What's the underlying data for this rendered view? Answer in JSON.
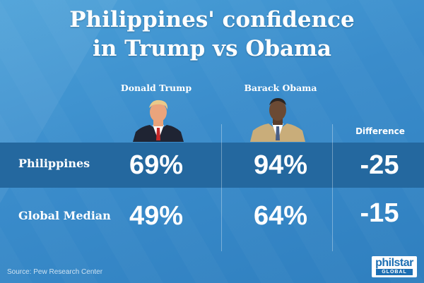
{
  "chart_data": {
    "type": "table",
    "title": "Philippines' confidence in Trump vs Obama",
    "title_lines": [
      "Philippines' confidence",
      "in Trump vs Obama"
    ],
    "columns": [
      "Donald Trump",
      "Barack Obama",
      "Difference"
    ],
    "rows": [
      {
        "label": "Philippines",
        "values": [
          "69%",
          "94%",
          "-25"
        ],
        "trump": 69,
        "obama": 94,
        "difference": -25
      },
      {
        "label": "Global Median",
        "values": [
          "49%",
          "64%",
          "-15"
        ],
        "trump": 49,
        "obama": 64,
        "difference": -15
      }
    ]
  },
  "source": "Source: Pew Research Center",
  "logo": {
    "top": "philstar",
    "bottom": "GLOBAL"
  },
  "colors": {
    "background": "#3a8ccb",
    "row_highlight": "#24689f",
    "text": "#ffffff",
    "logo_blue": "#1d6fb3"
  },
  "icons": {
    "trump_portrait": "person-portrait-icon",
    "obama_portrait": "person-portrait-icon"
  }
}
